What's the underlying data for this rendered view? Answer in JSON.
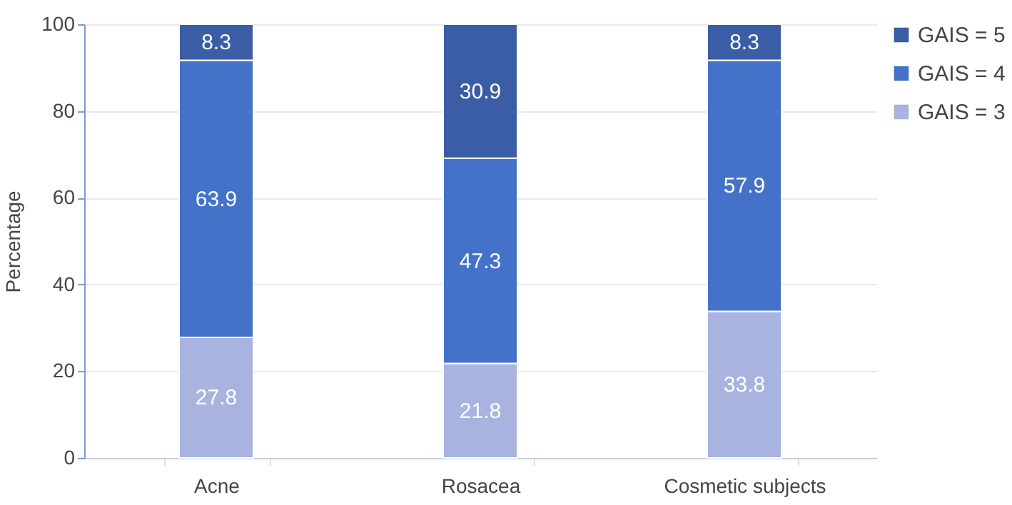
{
  "chart_data": {
    "type": "bar",
    "stacked": true,
    "ylabel": "Percentage",
    "categories": [
      "Acne",
      "Rosacea",
      "Cosmetic subjects"
    ],
    "series": [
      {
        "name": "GAIS = 3",
        "color": "#a8b4df",
        "values": [
          27.8,
          21.8,
          33.8
        ]
      },
      {
        "name": "GAIS = 4",
        "color": "#4472c8",
        "values": [
          63.9,
          47.3,
          57.9
        ]
      },
      {
        "name": "GAIS = 5",
        "color": "#3a5da6",
        "values": [
          8.3,
          30.9,
          8.3
        ]
      }
    ],
    "ylim": [
      0,
      100
    ],
    "yticks": [
      0,
      20,
      40,
      60,
      80,
      100
    ],
    "grid": "y",
    "legend": "top right",
    "data_labels": true
  }
}
